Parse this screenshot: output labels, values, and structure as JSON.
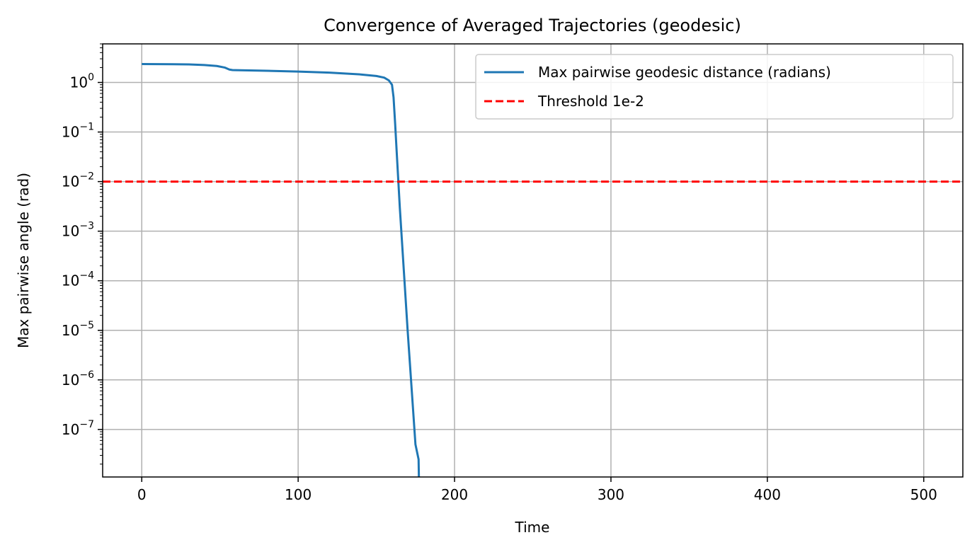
{
  "chart_data": {
    "type": "line",
    "title": "Convergence of Averaged Trajectories (geodesic)",
    "xlabel": "Time",
    "ylabel": "Max pairwise angle (rad)",
    "xlim": [
      -25,
      525
    ],
    "ylim": [
      1.1e-08,
      6
    ],
    "yscale": "log",
    "grid": true,
    "legend_position": "top-right",
    "x_ticks": [
      {
        "value": 0,
        "label": "0"
      },
      {
        "value": 100,
        "label": "100"
      },
      {
        "value": 200,
        "label": "200"
      },
      {
        "value": 300,
        "label": "300"
      },
      {
        "value": 400,
        "label": "400"
      },
      {
        "value": 500,
        "label": "500"
      }
    ],
    "y_ticks": [
      {
        "value": 1,
        "base": "10",
        "exp": "0"
      },
      {
        "value": 0.1,
        "base": "10",
        "exp": "−1"
      },
      {
        "value": 0.01,
        "base": "10",
        "exp": "−2"
      },
      {
        "value": 0.001,
        "base": "10",
        "exp": "−3"
      },
      {
        "value": 0.0001,
        "base": "10",
        "exp": "−4"
      },
      {
        "value": 1e-05,
        "base": "10",
        "exp": "−5"
      },
      {
        "value": 1e-06,
        "base": "10",
        "exp": "−6"
      },
      {
        "value": 1e-07,
        "base": "10",
        "exp": "−7"
      }
    ],
    "series": [
      {
        "name": "Max pairwise geodesic distance (radians)",
        "color": "#1f77b4",
        "style": "solid",
        "x": [
          0,
          10,
          20,
          30,
          40,
          48,
          53,
          56,
          58,
          60,
          80,
          100,
          120,
          140,
          150,
          155,
          158,
          160,
          161,
          162,
          163,
          165,
          170,
          175,
          177,
          177.2
        ],
        "y": [
          2.35,
          2.34,
          2.33,
          2.31,
          2.25,
          2.15,
          2.0,
          1.82,
          1.78,
          1.77,
          1.72,
          1.66,
          1.58,
          1.45,
          1.35,
          1.25,
          1.1,
          0.9,
          0.5,
          0.15,
          0.04,
          0.003,
          1e-05,
          5e-08,
          2.5e-08,
          1e-08
        ]
      },
      {
        "name": "Threshold 1e-2",
        "color": "#ff0000",
        "style": "dashed",
        "x": [
          -25,
          525
        ],
        "y": [
          0.01,
          0.01
        ]
      }
    ]
  }
}
